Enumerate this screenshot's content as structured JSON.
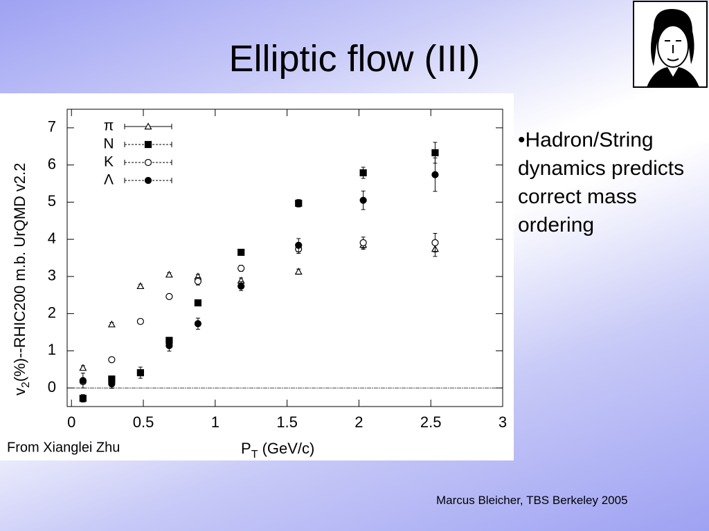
{
  "slide": {
    "title": "Elliptic flow (III)",
    "bullet": "•Hadron/String dynamics predicts correct mass ordering",
    "credit": "From Xianglei Zhu",
    "footer": "Marcus Bleicher, TBS Berkeley 2005"
  },
  "chart_data": {
    "type": "scatter",
    "x_label": [
      "P",
      "T",
      " (GeV/c)"
    ],
    "y_label": [
      "v",
      "2",
      "(%)--RHIC200 m.b. UrQMD v2.2"
    ],
    "x": [
      0.08,
      0.28,
      0.48,
      0.68,
      0.88,
      1.18,
      1.58,
      2.03,
      2.53
    ],
    "xlim": [
      -0.03,
      3
    ],
    "ylim": [
      -0.5,
      7.5
    ],
    "xticks": [
      0,
      0.5,
      1,
      1.5,
      2,
      2.5,
      3
    ],
    "yticks": [
      0,
      1,
      2,
      3,
      4,
      5,
      6,
      7
    ],
    "reference_line": 0,
    "series": [
      {
        "name": "π",
        "color": "#000000",
        "marker": "open-triangle",
        "line": "solid",
        "values": [
          0.54,
          1.71,
          2.74,
          3.05,
          3.0,
          2.89,
          3.13,
          3.85,
          3.74
        ],
        "errors": [
          0.06,
          0.05,
          0.05,
          0.05,
          0.06,
          0.07,
          0.07,
          0.12,
          0.2
        ]
      },
      {
        "name": "N",
        "color": "#000000",
        "marker": "filled-square",
        "line": "dashed",
        "values": [
          -0.28,
          0.24,
          0.41,
          1.28,
          2.29,
          3.65,
          4.97,
          5.79,
          6.33
        ],
        "errors": [
          0.1,
          0.08,
          0.08,
          0.08,
          0.08,
          0.08,
          0.1,
          0.15,
          0.28
        ]
      },
      {
        "name": "K",
        "color": "#000000",
        "marker": "open-circle",
        "line": "dashed",
        "values": [
          0.17,
          0.76,
          1.79,
          2.46,
          2.87,
          3.22,
          3.74,
          3.91,
          3.91
        ],
        "errors": [
          0.06,
          0.06,
          0.06,
          0.06,
          0.1,
          0.08,
          0.12,
          0.15,
          0.25
        ]
      },
      {
        "name": "Λ",
        "color": "#000000",
        "marker": "filled-circle",
        "line": "dashed",
        "values": [
          0.2,
          0.11,
          0.41,
          1.14,
          1.73,
          2.74,
          3.84,
          5.05,
          5.74
        ],
        "errors": [
          0.2,
          0.12,
          0.15,
          0.15,
          0.15,
          0.12,
          0.18,
          0.25,
          0.45
        ]
      }
    ]
  }
}
